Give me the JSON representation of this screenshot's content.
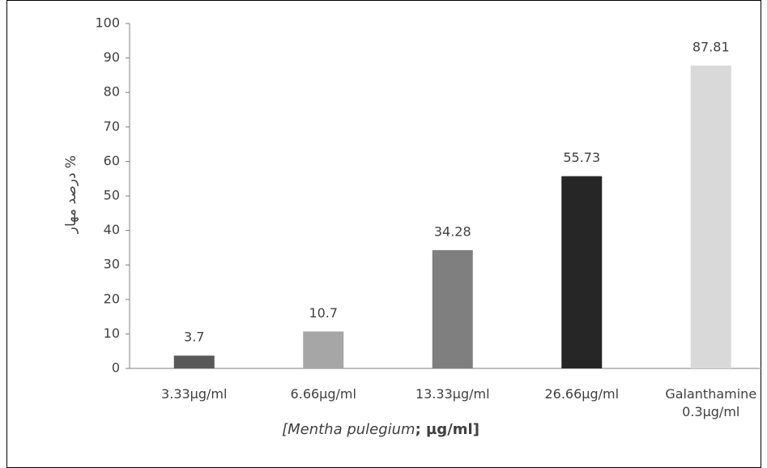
{
  "chart_data": {
    "type": "bar",
    "ylabel": "درصد مهار %",
    "xlabel": {
      "italic": "[Mentha pulegium",
      "bold": "; µg/ml]"
    },
    "categories": [
      "3.33µg/ml",
      "6.66µg/ml",
      "13.33µg/ml",
      "26.66µg/ml",
      "Galanthamine 0.3µg/ml"
    ],
    "values": [
      3.7,
      10.7,
      34.28,
      55.73,
      87.81
    ],
    "colors": [
      "#595959",
      "#a6a6a6",
      "#7f7f7f",
      "#262626",
      "#d9d9d9"
    ],
    "ylim": [
      0,
      100
    ],
    "yticks": [
      0,
      10,
      20,
      30,
      40,
      50,
      60,
      70,
      80,
      90,
      100
    ],
    "grid": false
  }
}
